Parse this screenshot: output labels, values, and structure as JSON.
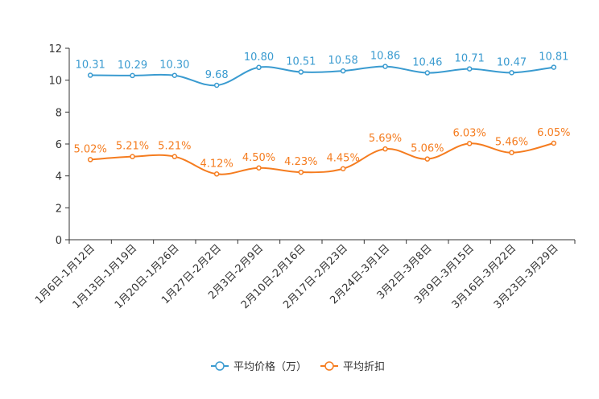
{
  "chart_data": {
    "type": "line",
    "categories": [
      "1月6日-1月12日",
      "1月13日-1月19日",
      "1月20日-1月26日",
      "1月27日-2月2日",
      "2月3日-2月9日",
      "2月10日-2月16日",
      "2月17日-2月23日",
      "2月24日-3月1日",
      "3月2日-3月8日",
      "3月9日-3月15日",
      "3月16日-3月22日",
      "3月23日-3月29日"
    ],
    "ylim": [
      0,
      12
    ],
    "yticks": [
      0,
      2,
      4,
      6,
      8,
      10,
      12
    ],
    "series": [
      {
        "name": "平均价格（万）",
        "color": "#3a9bd0",
        "values": [
          10.31,
          10.29,
          10.3,
          9.68,
          10.8,
          10.51,
          10.58,
          10.86,
          10.46,
          10.71,
          10.47,
          10.81
        ],
        "labels": [
          "10.31",
          "10.29",
          "10.30",
          "9.68",
          "10.80",
          "10.51",
          "10.58",
          "10.86",
          "10.46",
          "10.71",
          "10.47",
          "10.81"
        ]
      },
      {
        "name": "平均折扣",
        "color": "#f57c1f",
        "values": [
          5.02,
          5.21,
          5.21,
          4.12,
          4.5,
          4.23,
          4.45,
          5.69,
          5.06,
          6.03,
          5.46,
          6.05
        ],
        "labels": [
          "5.02%",
          "5.21%",
          "5.21%",
          "4.12%",
          "4.50%",
          "4.23%",
          "4.45%",
          "5.69%",
          "5.06%",
          "6.03%",
          "5.46%",
          "6.05%"
        ]
      }
    ],
    "legend_position": "bottom-center",
    "grid": false
  }
}
